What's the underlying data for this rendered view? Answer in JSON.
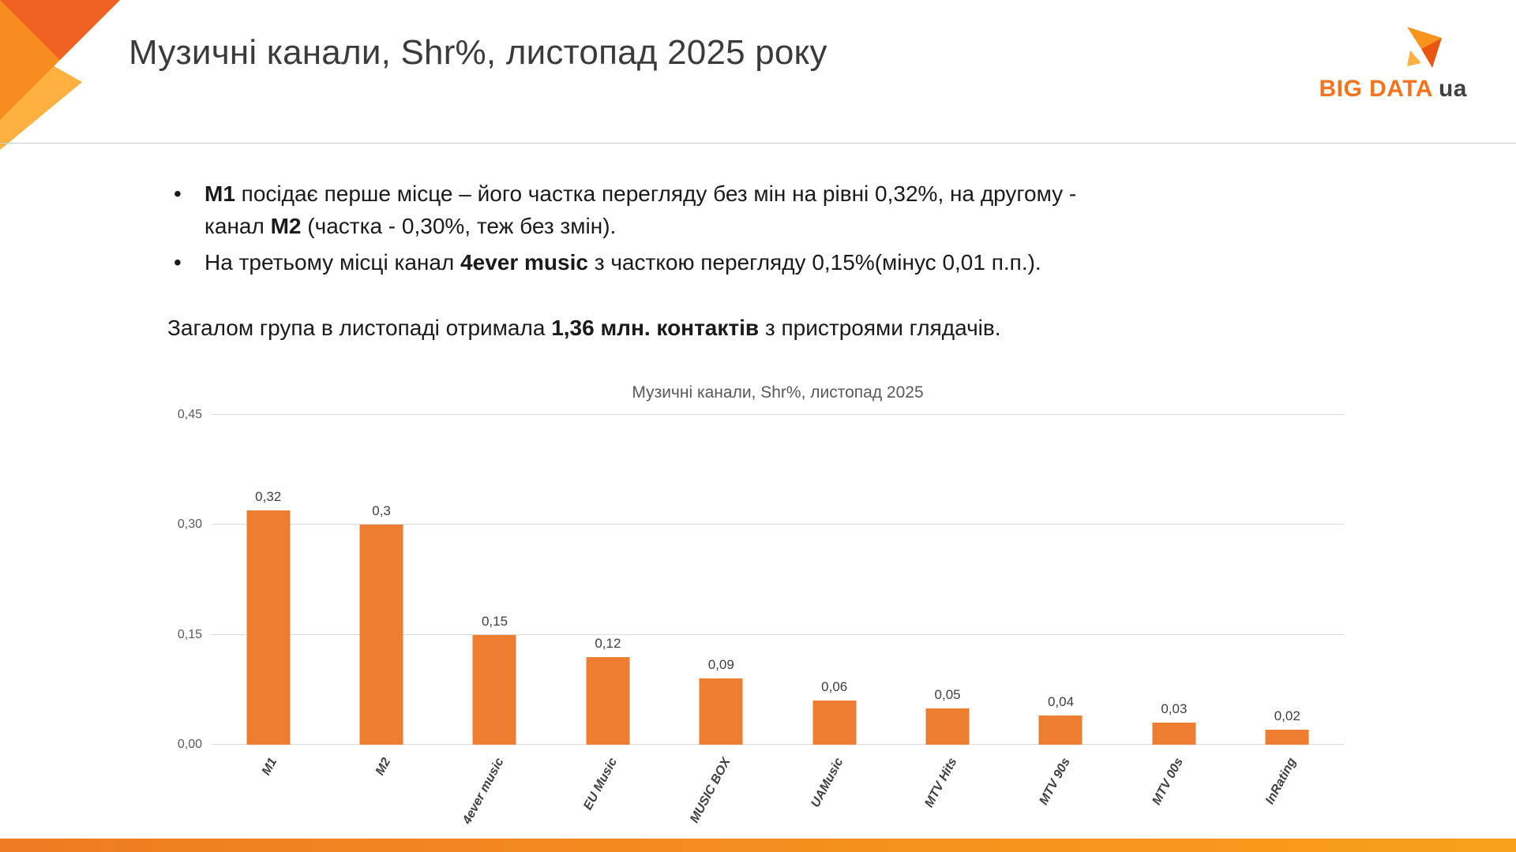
{
  "header": {
    "title": "Музичні канали, Shr%, листопад 2025 року"
  },
  "logo": {
    "brand": "BIG DATA",
    "suffix": "ua"
  },
  "bullets": [
    {
      "p1": "М1",
      "p2": " посідає перше місце – його частка перегляду без мін на рівні 0,32%, на другому - канал ",
      "p3": "М2",
      "p4": " (частка - 0,30%, теж без змін)."
    },
    {
      "p1": "На третьому місці канал ",
      "p2": "4ever music",
      "p3": " з часткою перегляду 0,15%(мінус 0,01 п.п.)."
    }
  ],
  "paragraph": {
    "p1": "Загалом група в листопаді отримала ",
    "p2": "1,36 млн. контактів",
    "p3": " з пристроями глядачів."
  },
  "chart_data": {
    "type": "bar",
    "title": "Музичні канали, Shr%, листопад 2025",
    "categories": [
      "М1",
      "М2",
      "4ever music",
      "EU Music",
      "MUSIC BOX",
      "UAMusic",
      "MTV Hits",
      "MTV 90s",
      "MTV 00s",
      "InRating"
    ],
    "values": [
      0.32,
      0.3,
      0.15,
      0.12,
      0.09,
      0.06,
      0.05,
      0.04,
      0.03,
      0.02
    ],
    "value_labels": [
      "0,32",
      "0,3",
      "0,15",
      "0,12",
      "0,09",
      "0,06",
      "0,05",
      "0,04",
      "0,03",
      "0,02"
    ],
    "xlabel": "",
    "ylabel": "",
    "ylim": [
      0,
      0.45
    ],
    "yticks": [
      {
        "value": 0.0,
        "label": "0,00"
      },
      {
        "value": 0.15,
        "label": "0,15"
      },
      {
        "value": 0.3,
        "label": "0,30"
      },
      {
        "value": 0.45,
        "label": "0,45"
      }
    ],
    "grid": true,
    "legend": "none",
    "bar_color": "#ED7D31"
  },
  "colors": {
    "bar": "#ED7D31",
    "grid": "#D9D9D9",
    "chart_text": "#595959",
    "title_text": "#3B3B3B",
    "logo_orange": "#F4731C",
    "accent_orange": "#F68B1F",
    "accent_deep_orange": "#EE5B24",
    "accent_yellow": "#FBB040"
  }
}
